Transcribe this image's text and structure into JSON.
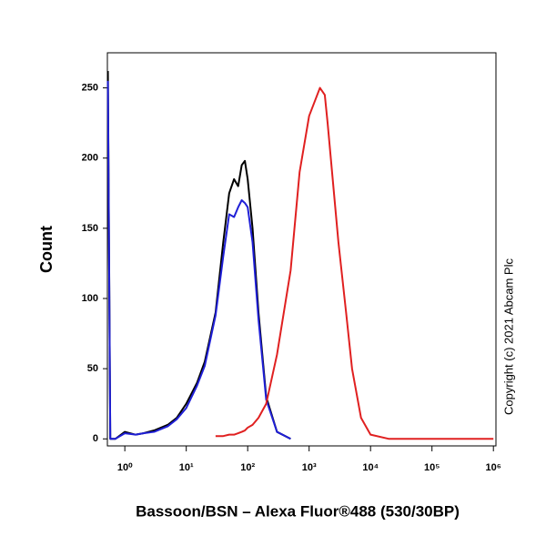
{
  "chart_data": {
    "type": "line",
    "xlabel": "Bassoon/BSN – Alexa Fluor®488 (530/30BP)",
    "ylabel": "Count",
    "annotation": "Copyright (c) 2021 Abcam Plc",
    "xscale": "log",
    "x": [
      0.53,
      0.58,
      0.7,
      1,
      1.5,
      2,
      3,
      5,
      7,
      10,
      15,
      20,
      30,
      40,
      50,
      60,
      70,
      80,
      90,
      100,
      120,
      150,
      200,
      300,
      500,
      700,
      1000,
      1500,
      1800,
      2000,
      3000,
      4000,
      5000,
      7000,
      10000,
      20000,
      1000000
    ],
    "series": [
      {
        "color": "#000000",
        "values": [
          262,
          0,
          0,
          5,
          3,
          4,
          6,
          10,
          15,
          25,
          40,
          55,
          90,
          140,
          175,
          185,
          180,
          195,
          198,
          185,
          150,
          90,
          30,
          5,
          0,
          null,
          null,
          null,
          null,
          null,
          null,
          null,
          null,
          null,
          null,
          null,
          null
        ]
      },
      {
        "color": "#1f1fd6",
        "values": [
          255,
          0,
          0,
          4,
          3,
          4,
          5,
          9,
          14,
          22,
          38,
          52,
          88,
          130,
          160,
          158,
          165,
          170,
          168,
          165,
          140,
          85,
          28,
          5,
          0,
          null,
          null,
          null,
          null,
          null,
          null,
          null,
          null,
          null,
          null,
          null,
          null
        ]
      },
      {
        "color": "#e02020",
        "values": [
          null,
          null,
          null,
          null,
          null,
          null,
          null,
          null,
          null,
          null,
          null,
          null,
          2,
          2,
          3,
          3,
          4,
          5,
          6,
          8,
          10,
          15,
          25,
          60,
          120,
          190,
          230,
          250,
          245,
          225,
          140,
          90,
          50,
          15,
          3,
          0,
          0
        ]
      }
    ],
    "xlim": [
      0.52,
      1100000
    ],
    "xticks": [
      {
        "value": 1,
        "label": "10⁰"
      },
      {
        "value": 10,
        "label": "10¹"
      },
      {
        "value": 100,
        "label": "10²"
      },
      {
        "value": 1000,
        "label": "10³"
      },
      {
        "value": 10000,
        "label": "10⁴"
      },
      {
        "value": 100000,
        "label": "10⁵"
      },
      {
        "value": 1000000,
        "label": "10⁶"
      }
    ],
    "ylim": [
      -5,
      275
    ],
    "yticks": [
      0,
      50,
      100,
      150,
      200,
      250
    ]
  }
}
